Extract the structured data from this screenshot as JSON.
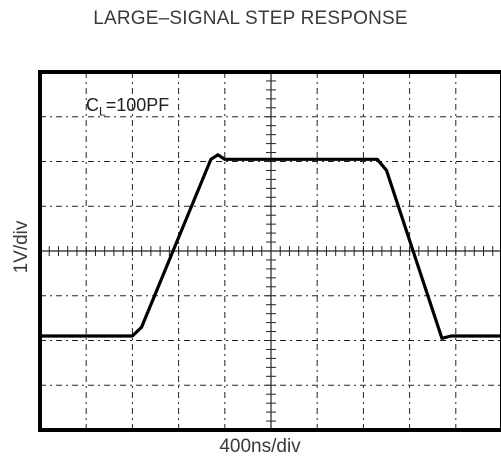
{
  "chart_data": {
    "type": "line",
    "title": "LARGE–SIGNAL STEP RESPONSE",
    "xlabel": "400ns/div",
    "ylabel": "1V/div",
    "annotation": {
      "prefix": "C",
      "subscript": "L",
      "suffix": "=100PF"
    },
    "grid": true,
    "x_divisions": 10,
    "y_divisions": 8,
    "xlim": [
      0,
      10
    ],
    "ylim": [
      0,
      8
    ],
    "series": [
      {
        "x": [
          0,
          2,
          2.2,
          3.7,
          3.85,
          4.0,
          7.3,
          7.5,
          8.7,
          8.9,
          10
        ],
        "y": [
          2.1,
          2.1,
          2.3,
          6.05,
          6.15,
          6.05,
          6.05,
          5.8,
          2.05,
          2.1,
          2.1
        ]
      }
    ]
  }
}
